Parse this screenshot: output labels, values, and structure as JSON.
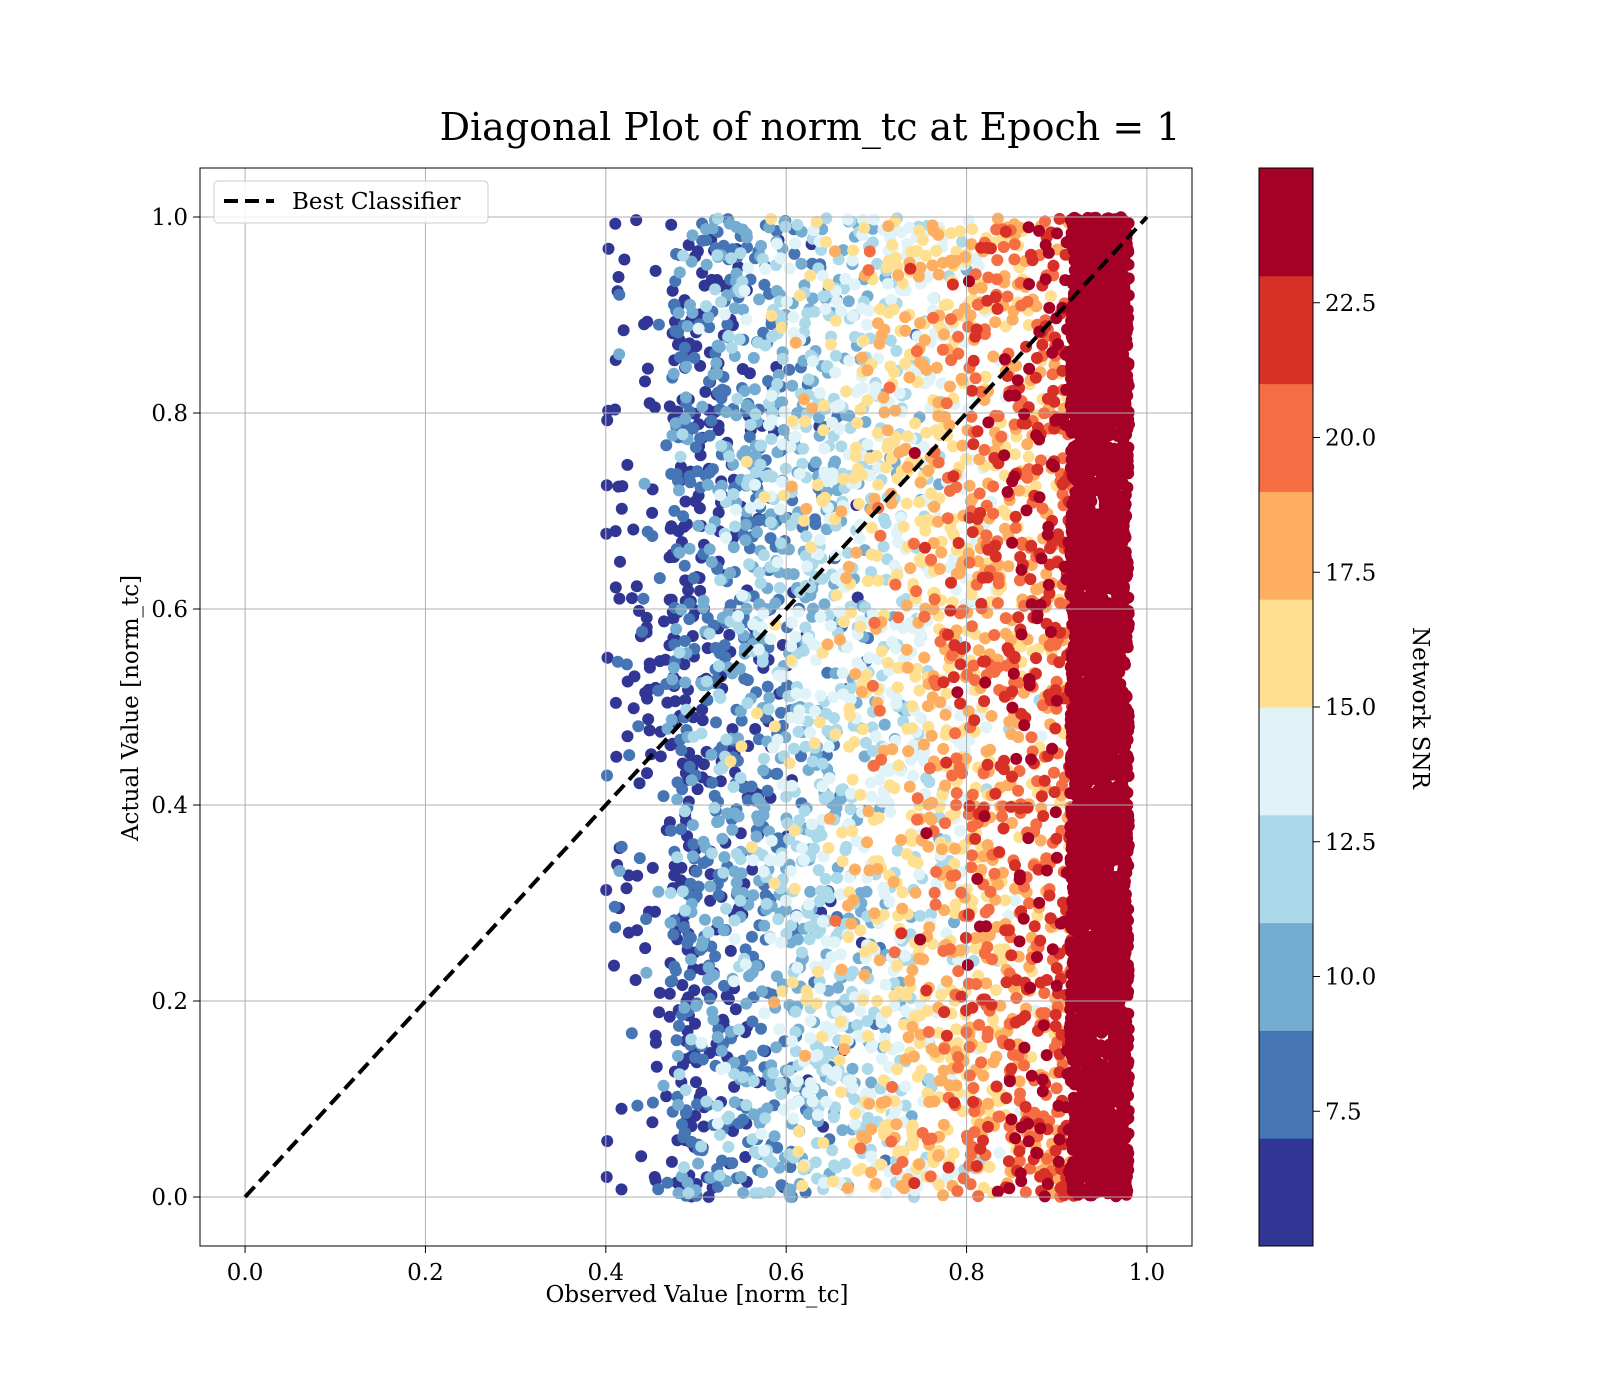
{
  "chart_data": {
    "type": "scatter",
    "title": "Diagonal Plot of norm_tc at Epoch = 1",
    "xlabel": "Observed Value [norm_tc]",
    "ylabel": "Actual Value [norm_tc]",
    "xlim": [
      -0.05,
      1.05
    ],
    "ylim": [
      -0.05,
      1.05
    ],
    "x_ticks": [
      "0.0",
      "0.2",
      "0.4",
      "0.6",
      "0.8",
      "1.0"
    ],
    "y_ticks": [
      "0.0",
      "0.2",
      "0.4",
      "0.6",
      "0.8",
      "1.0"
    ],
    "grid": true,
    "legend": {
      "position": "top-left",
      "entries": [
        "Best Classifier"
      ]
    },
    "reference_line": {
      "name": "Best Classifier",
      "style": "dashed",
      "color": "#000000",
      "points": [
        [
          0,
          0
        ],
        [
          1,
          1
        ]
      ]
    },
    "scatter_description": {
      "x_range_observed": [
        0.38,
        0.99
      ],
      "y_range_observed": [
        0.0,
        1.0
      ],
      "color_variable": "Network SNR",
      "trend": "SNR increases with observed value; points with observed value above ~0.91 have SNR >= 22.5"
    },
    "colorbar": {
      "label": "Network SNR",
      "ticks": [
        "7.5",
        "10.0",
        "12.5",
        "15.0",
        "17.5",
        "20.0",
        "22.5"
      ],
      "tick_values": [
        7.5,
        10.0,
        12.5,
        15.0,
        17.5,
        20.0,
        22.5
      ],
      "range": [
        5.0,
        25.0
      ],
      "bins": [
        5.0,
        7.0,
        9.0,
        11.0,
        13.0,
        15.0,
        17.0,
        19.0,
        21.0,
        23.0,
        25.0
      ],
      "colors": [
        "#313695",
        "#4575b4",
        "#74add1",
        "#abd9e9",
        "#e0f3f8",
        "#fee090",
        "#fdae61",
        "#f46d43",
        "#d73027",
        "#a50026"
      ]
    }
  }
}
